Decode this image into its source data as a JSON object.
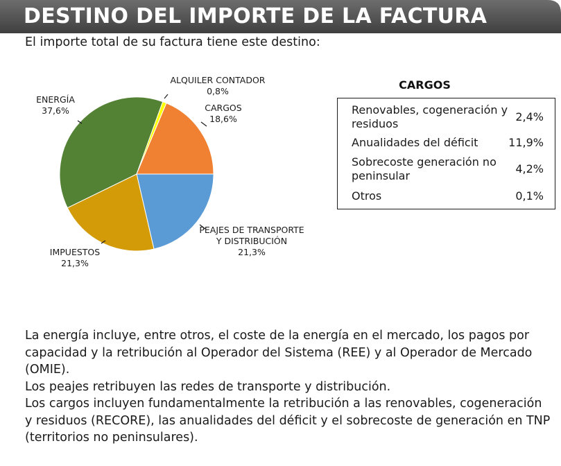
{
  "header": {
    "title": "DESTINO DEL IMPORTE DE LA FACTURA"
  },
  "subtitle": "El importe total de su factura tiene este destino:",
  "chart_data": {
    "type": "pie",
    "unit": "%",
    "slices": [
      {
        "name": "CARGOS",
        "label_lines": [
          "CARGOS"
        ],
        "value": 18.6,
        "value_label": "18,6%",
        "color": "#f08132"
      },
      {
        "name": "PEAJES DE TRANSPORTE Y DISTRIBUCIÓN",
        "label_lines": [
          "PEAJES DE TRANSPORTE",
          "Y DISTRIBUCIÓN"
        ],
        "value": 21.3,
        "value_label": "21,3%",
        "color": "#5b9bd5"
      },
      {
        "name": "IMPUESTOS",
        "label_lines": [
          "IMPUESTOS"
        ],
        "value": 21.3,
        "value_label": "21,3%",
        "color": "#d39b07"
      },
      {
        "name": "ENERGÍA",
        "label_lines": [
          "ENERGÍA"
        ],
        "value": 37.6,
        "value_label": "37,6%",
        "color": "#548235"
      },
      {
        "name": "ALQUILER CONTADOR",
        "label_lines": [
          "ALQUILER CONTADOR"
        ],
        "value": 0.8,
        "value_label": "0,8%",
        "color": "#ffff00"
      }
    ]
  },
  "cargos": {
    "title": "CARGOS",
    "rows": [
      {
        "name": "Renovables, cogeneración y residuos",
        "value": "2,4%"
      },
      {
        "name": "Anualidades del déficit",
        "value": "11,9%"
      },
      {
        "name": "Sobrecoste generación no peninsular",
        "value": "4,2%"
      },
      {
        "name": "Otros",
        "value": "0,1%"
      }
    ]
  },
  "notes": [
    "La energía incluye, entre otros, el coste de la energía en el mercado, los pagos por capacidad y la retribución al Operador del Sistema (REE) y al Operador de Mercado (OMIE).",
    "Los peajes retribuyen las redes de transporte y distribución.",
    "Los cargos incluyen fundamentalmente la retribución a las renovables, cogeneración y residuos (RECORE), las anualidades del déficit y el sobrecoste de generación en TNP (territorios no peninsulares)."
  ]
}
